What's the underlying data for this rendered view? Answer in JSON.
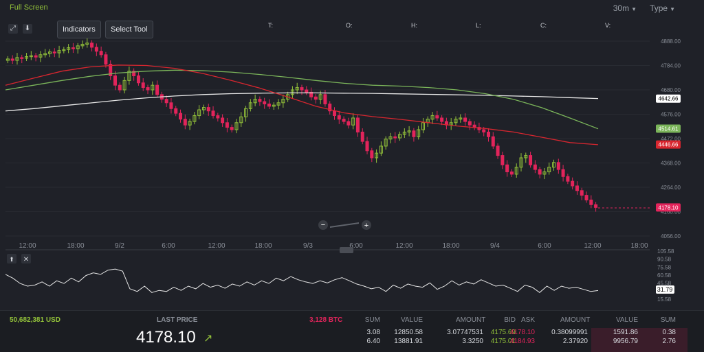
{
  "topbar": {
    "fullscreen": "Full Screen",
    "timeframe": "30m",
    "type": "Type"
  },
  "toolbar": {
    "indicators": "Indicators",
    "select_tool": "Select Tool"
  },
  "ohlc_labels": [
    "T:",
    "O:",
    "H:",
    "L:",
    "C:",
    "V:"
  ],
  "colors": {
    "up": "#93c23a",
    "down": "#e2245b",
    "ma_red": "#d8262f",
    "ma_green": "#7bb55a",
    "ma_white": "#e8e8e8",
    "background": "#1f2128"
  },
  "chart_data": {
    "type": "candlestick",
    "price_axis": [
      "4888.00",
      "4784.00",
      "4680.00",
      "4576.00",
      "4472.00",
      "4368.00",
      "4264.00",
      "4160.00",
      "4056.00"
    ],
    "ylim": [
      4056,
      4888
    ],
    "time_axis": [
      "12:00",
      "18:00",
      "9/2",
      "6:00",
      "12:00",
      "18:00",
      "9/3",
      "6:00",
      "12:00",
      "18:00",
      "9/4",
      "6:00",
      "12:00",
      "18:00"
    ],
    "price_tags": [
      {
        "value": "4642.66",
        "color": "#ffffff"
      },
      {
        "value": "4514.61",
        "color": "#7bb55a"
      },
      {
        "value": "4446.66",
        "color": "#d8262f"
      },
      {
        "value": "4178.10",
        "color": "#e2245b"
      }
    ],
    "close_series": [
      4812,
      4806,
      4818,
      4815,
      4822,
      4826,
      4820,
      4830,
      4835,
      4842,
      4838,
      4848,
      4852,
      4860,
      4856,
      4868,
      4875,
      4880,
      4862,
      4845,
      4830,
      4790,
      4740,
      4700,
      4680,
      4720,
      4760,
      4740,
      4710,
      4690,
      4680,
      4700,
      4660,
      4640,
      4625,
      4600,
      4580,
      4555,
      4530,
      4545,
      4570,
      4595,
      4605,
      4590,
      4570,
      4560,
      4540,
      4520,
      4510,
      4540,
      4565,
      4600,
      4625,
      4640,
      4630,
      4620,
      4610,
      4615,
      4625,
      4640,
      4660,
      4680,
      4690,
      4680,
      4670,
      4650,
      4640,
      4660,
      4620,
      4590,
      4570,
      4555,
      4545,
      4530,
      4560,
      4500,
      4460,
      4420,
      4390,
      4410,
      4440,
      4470,
      4480,
      4475,
      4490,
      4500,
      4505,
      4480,
      4510,
      4540,
      4555,
      4570,
      4560,
      4545,
      4530,
      4540,
      4555,
      4560,
      4545,
      4530,
      4520,
      4510,
      4500,
      4480,
      4440,
      4400,
      4360,
      4330,
      4320,
      4350,
      4390,
      4400,
      4360,
      4340,
      4320,
      4330,
      4350,
      4370,
      4340,
      4310,
      4290,
      4270,
      4250,
      4230,
      4210,
      4190,
      4178
    ],
    "ma_white_series": [
      4590,
      4600,
      4612,
      4624,
      4636,
      4646,
      4654,
      4660,
      4664,
      4666,
      4667,
      4667,
      4666,
      4665,
      4663,
      4661,
      4659,
      4657,
      4654,
      4651,
      4647,
      4643
    ],
    "ma_green_series": [
      4680,
      4700,
      4720,
      4738,
      4752,
      4760,
      4764,
      4762,
      4756,
      4746,
      4734,
      4720,
      4708,
      4700,
      4696,
      4690,
      4680,
      4664,
      4640,
      4604,
      4560,
      4514
    ],
    "ma_red_series": [
      4700,
      4730,
      4760,
      4778,
      4786,
      4784,
      4772,
      4750,
      4720,
      4688,
      4650,
      4610,
      4582,
      4566,
      4554,
      4540,
      4526,
      4515,
      4500,
      4478,
      4455,
      4446
    ],
    "oscillator_axis": [
      "105.58",
      "90.58",
      "75.58",
      "60.58",
      "45.58",
      "30.58",
      "15.58"
    ],
    "oscillator_tag": "31.79",
    "oscillator_series": [
      62,
      55,
      45,
      40,
      42,
      48,
      40,
      50,
      45,
      55,
      48,
      60,
      65,
      62,
      70,
      72,
      68,
      35,
      30,
      40,
      28,
      32,
      30,
      38,
      32,
      40,
      35,
      45,
      38,
      42,
      36,
      44,
      40,
      48,
      42,
      50,
      45,
      55,
      50,
      58,
      52,
      48,
      45,
      50,
      46,
      52,
      56,
      50,
      44,
      40,
      35,
      38,
      30,
      42,
      36,
      44,
      40,
      38,
      46,
      34,
      40,
      50,
      42,
      48,
      44,
      52,
      46,
      40,
      42,
      36,
      30,
      42,
      38,
      28,
      40,
      32,
      40,
      36,
      38,
      34,
      30,
      31.79
    ]
  },
  "bottom": {
    "volume": "50,682,381 USD",
    "last_price_label": "LAST PRICE",
    "last_price": "4178.10",
    "btc_volume": "3,128 BTC",
    "orderbook": {
      "headers": [
        "SUM",
        "VALUE",
        "AMOUNT",
        "BID",
        "ASK",
        "AMOUNT",
        "VALUE",
        "SUM"
      ],
      "rows": [
        [
          "3.08",
          "12850.58",
          "3.07747531",
          "4175.69",
          "4178.10",
          "0.38099991",
          "1591.86",
          "0.38"
        ],
        [
          "6.40",
          "13881.91",
          "3.3250",
          "4175.01",
          "4184.93",
          "2.37920",
          "9956.79",
          "2.76"
        ]
      ]
    }
  }
}
